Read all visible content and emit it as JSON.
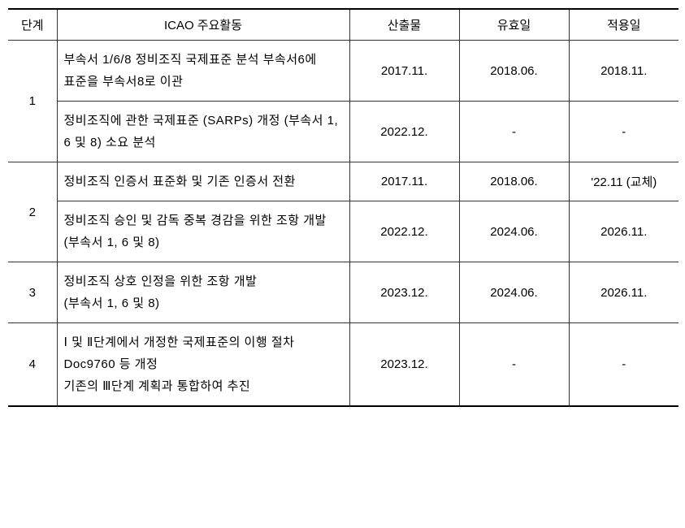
{
  "headers": {
    "stage": "단계",
    "activity": "ICAO 주요활동",
    "output": "산출물",
    "effective": "유효일",
    "apply": "적용일"
  },
  "rows": [
    {
      "stage": "1",
      "activities": [
        {
          "text": "부속서 1/6/8 정비조직 국제표준 분석 부속서6에 표준을 부속서8로 이관",
          "output": "2017.11.",
          "effective": "2018.06.",
          "apply": "2018.11."
        },
        {
          "text": "정비조직에 관한 국제표준 (SARPs) 개정 (부속서 1, 6 및 8) 소요 분석",
          "output": "2022.12.",
          "effective": "-",
          "apply": "-"
        }
      ]
    },
    {
      "stage": "2",
      "activities": [
        {
          "text": "정비조직 인증서 표준화 및 기존 인증서 전환",
          "output": "2017.11.",
          "effective": "2018.06.",
          "apply": "'22.11 (교체)"
        },
        {
          "text": "정비조직 승인 및 감독 중복 경감을 위한 조항 개발 (부속서 1, 6 및 8)",
          "output": "2022.12.",
          "effective": "2024.06.",
          "apply": "2026.11."
        }
      ]
    },
    {
      "stage": "3",
      "activities": [
        {
          "text": "정비조직 상호 인정을 위한 조항 개발\n(부속서 1, 6 및 8)",
          "output": "2023.12.",
          "effective": "2024.06.",
          "apply": "2026.11."
        }
      ]
    },
    {
      "stage": "4",
      "activities": [
        {
          "text": "Ⅰ 및 Ⅱ단계에서 개정한 국제표준의 이행 절차 Doc9760 등 개정\n기존의 Ⅲ단계 계획과 통합하여 추진",
          "output": "2023.12.",
          "effective": "-",
          "apply": "-"
        }
      ]
    }
  ],
  "styles": {
    "border_color": "#333333",
    "heavy_border_color": "#000000",
    "background": "#ffffff",
    "font_size": 15
  }
}
